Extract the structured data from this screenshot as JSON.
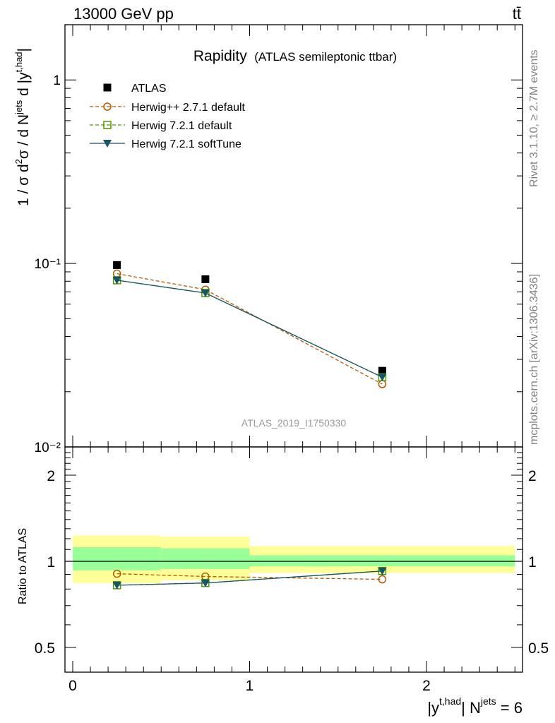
{
  "header": {
    "energy_label": "13000 GeV pp",
    "process_label": "tt̄"
  },
  "side_labels": {
    "rivet": "Rivet 3.1.10, ≥ 2.7M events",
    "mcplots": "mcplots.cern.ch [arXiv:1306.3436]"
  },
  "chart_data": [
    {
      "type": "scatter",
      "panel": "main",
      "title": "Rapidity",
      "subtitle": "(ATLAS semileptonic ttbar)",
      "analysis_id": "ATLAS_2019_I1750330",
      "ylabel": "1 / σ d²σ / d Nʲᵉᵗˢ d |yᵗ,ʰᵃᵈ|",
      "yscale": "log",
      "ylim": [
        0.01,
        2
      ],
      "xlim": [
        -0.1,
        2.55
      ],
      "y_tick_labels": [
        "10⁻²",
        "10⁻¹",
        "1"
      ],
      "legend_position": "top-left",
      "x": [
        0.25,
        0.75,
        1.75
      ],
      "series": [
        {
          "name": "ATLAS",
          "marker": "filled-square",
          "color": "#000000",
          "values": [
            0.098,
            0.082,
            0.026
          ]
        },
        {
          "name": "Herwig++ 2.7.1 default",
          "marker": "open-circle",
          "line": "dashed",
          "color": "#b35900",
          "values": [
            0.088,
            0.072,
            0.022
          ]
        },
        {
          "name": "Herwig 7.2.1 default",
          "marker": "open-square",
          "line": "dashed",
          "color": "#4d9900",
          "values": [
            0.081,
            0.069,
            0.024
          ]
        },
        {
          "name": "Herwig 7.2.1 softTune",
          "marker": "filled-triangle-down",
          "line": "solid",
          "color": "#1a5566",
          "values": [
            0.081,
            0.069,
            0.024
          ]
        }
      ]
    },
    {
      "type": "line",
      "panel": "ratio",
      "ylabel": "Ratio to ATLAS",
      "xlabel": "|yᵗ,ʰᵃᵈ| Nʲᵉᵗˢ = 6",
      "ylim": [
        0.4,
        2.5
      ],
      "xlim": [
        -0.1,
        2.55
      ],
      "y_tick_labels": [
        "0.5",
        "1",
        "2"
      ],
      "x_tick_labels": [
        "0",
        "1",
        "2"
      ],
      "uncertainty_bands": [
        {
          "x_range": [
            0,
            0.5
          ],
          "inner": [
            0.93,
            1.12
          ],
          "outer": [
            0.84,
            1.23
          ]
        },
        {
          "x_range": [
            0.5,
            1.0
          ],
          "inner": [
            0.94,
            1.11
          ],
          "outer": [
            0.86,
            1.22
          ]
        },
        {
          "x_range": [
            1.0,
            2.5
          ],
          "inner": [
            0.96,
            1.05
          ],
          "outer": [
            0.91,
            1.13
          ]
        }
      ],
      "x": [
        0.25,
        0.75,
        1.75
      ],
      "series": [
        {
          "name": "Herwig++ 2.7.1 default",
          "color": "#b35900",
          "values": [
            0.905,
            0.885,
            0.865
          ]
        },
        {
          "name": "Herwig 7.2.1 default",
          "color": "#4d9900",
          "values": [
            0.825,
            0.84,
            0.925
          ]
        },
        {
          "name": "Herwig 7.2.1 softTune",
          "color": "#1a5566",
          "values": [
            0.825,
            0.84,
            0.925
          ]
        }
      ]
    }
  ]
}
